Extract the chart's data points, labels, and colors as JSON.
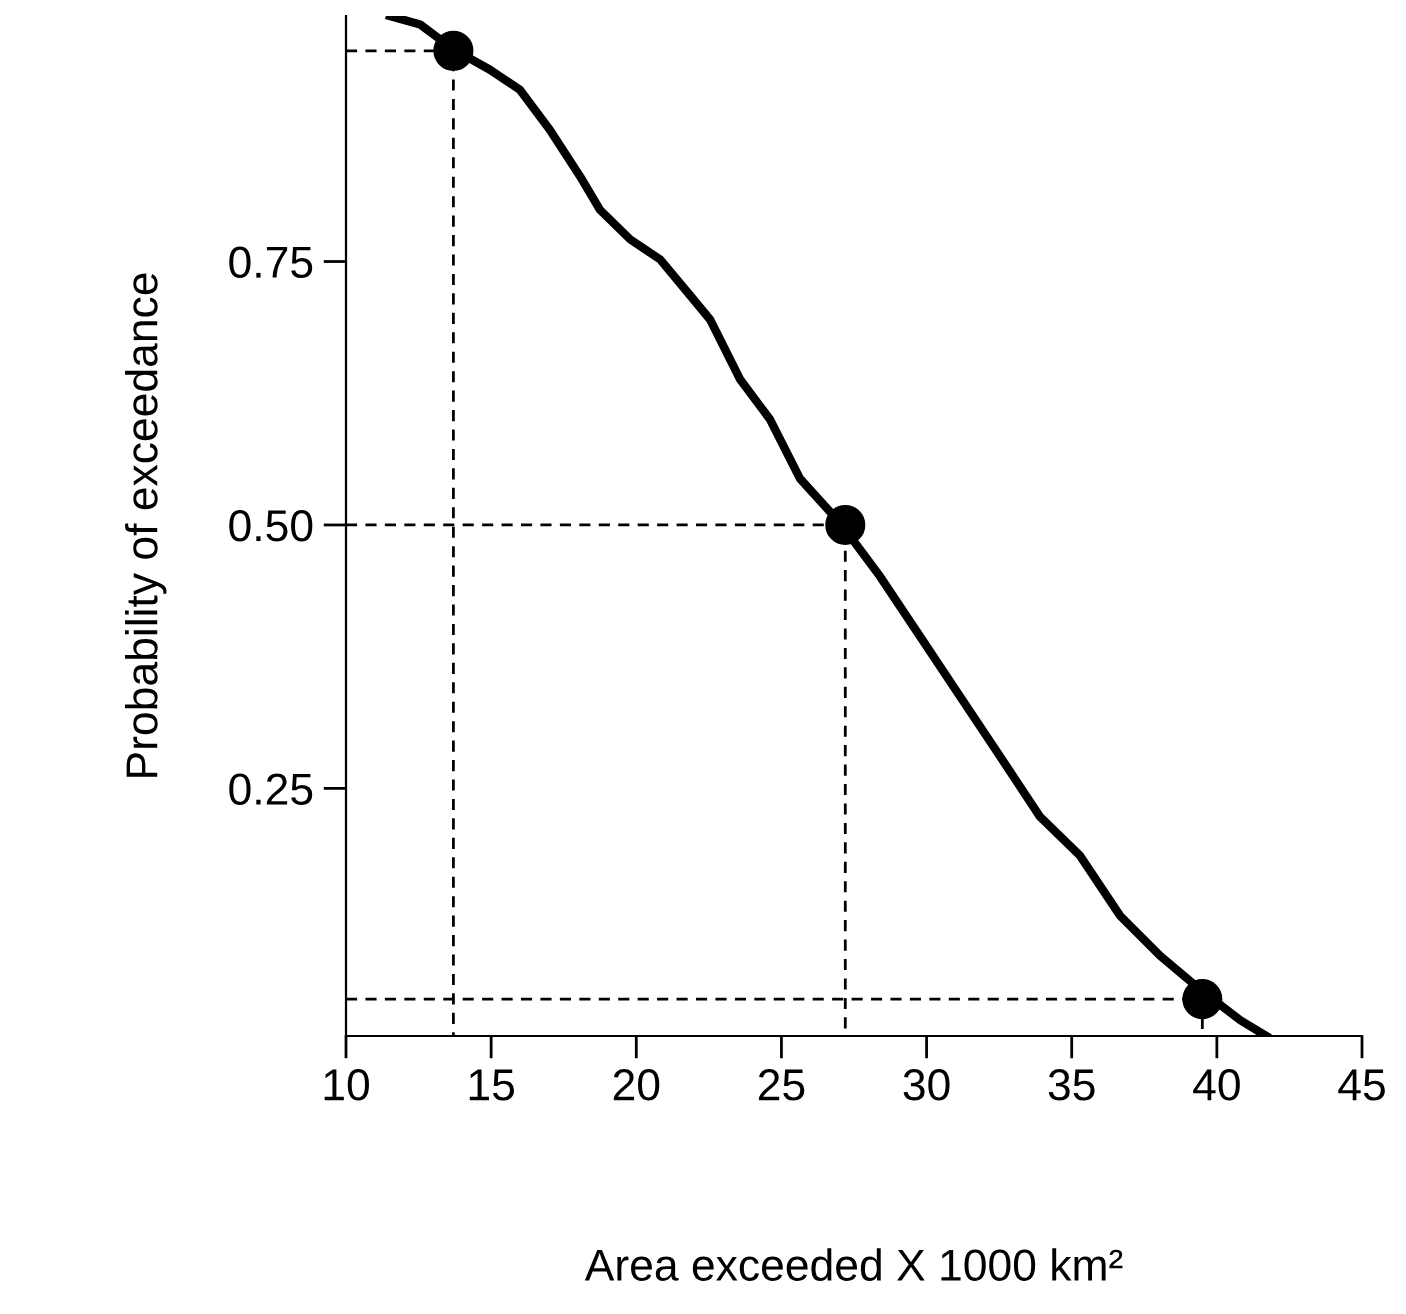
{
  "chart_data": {
    "type": "line",
    "xlabel": "Area exceeded X 1000 km²",
    "ylabel": "Probability of exceedance",
    "xlim": [
      10,
      45
    ],
    "xticks": [
      10,
      15,
      20,
      25,
      30,
      35,
      40,
      45
    ],
    "ylim": [
      0.015,
      0.983
    ],
    "yticks": [
      0.25,
      {
        "value": 0.5,
        "label": "0.50"
      },
      0.75
    ],
    "grid": false,
    "legend": false,
    "series": [
      {
        "color": "#000000",
        "line_style": "solid",
        "marker": "none",
        "x": [
          11.52,
          12.55,
          13.72,
          14.96,
          15.99,
          17.02,
          18.06,
          18.75,
          19.79,
          20.82,
          21.85,
          22.54,
          23.58,
          24.61,
          25.64,
          27.02,
          28.4,
          29.78,
          31.16,
          32.54,
          33.91,
          35.29,
          36.67,
          38.05,
          39.43,
          40.81,
          41.7
        ],
        "values": [
          0.983,
          0.975,
          0.951,
          0.932,
          0.913,
          0.875,
          0.831,
          0.799,
          0.771,
          0.752,
          0.718,
          0.695,
          0.638,
          0.6,
          0.544,
          0.502,
          0.451,
          0.394,
          0.337,
          0.28,
          0.223,
          0.186,
          0.129,
          0.091,
          0.059,
          0.03,
          0.015
        ]
      },
      {
        "color": "#000000",
        "line_style": "dashed",
        "marker": "none",
        "x": [
          10,
          13.7,
          13.7
        ],
        "values": [
          0.95,
          0.95,
          0.015
        ]
      },
      {
        "color": "#000000",
        "line_style": "dashed",
        "marker": "none",
        "x": [
          10,
          27.2,
          27.2
        ],
        "values": [
          0.5,
          0.5,
          0.015
        ]
      },
      {
        "color": "#000000",
        "line_style": "dashed",
        "marker": "none",
        "x": [
          10,
          39.5,
          39.5
        ],
        "values": [
          0.05,
          0.05,
          0.015
        ]
      },
      {
        "type": "scatter",
        "color": "#000000",
        "marker": "circle",
        "x": [
          13.7,
          27.2,
          39.5
        ],
        "values": [
          0.95,
          0.5,
          0.05
        ]
      }
    ]
  }
}
